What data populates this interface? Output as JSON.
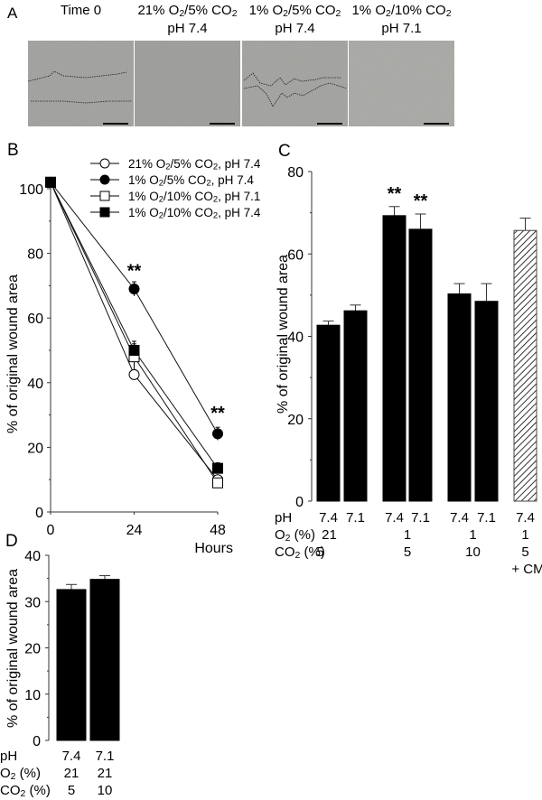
{
  "panel_a": {
    "label": "A",
    "columns": [
      {
        "line1": "Time 0",
        "line2": ""
      },
      {
        "line1": "21% O2/5% CO2",
        "line2": "pH 7.4"
      },
      {
        "line1": "1% O2/5% CO2",
        "line2": "pH 7.4"
      },
      {
        "line1": "1% O2/10% CO2",
        "line2": "pH 7.1"
      }
    ],
    "image_tones": [
      "#a9a9a6",
      "#a5a5a2",
      "#aaaaa7",
      "#b0b0ad"
    ]
  },
  "chart_data": [
    {
      "panel": "B",
      "type": "line",
      "xlabel": "Hours",
      "ylabel": "% of original wound area",
      "x": [
        0,
        24,
        48
      ],
      "xticks": [
        "0",
        "24",
        "48"
      ],
      "ylim": [
        0,
        100
      ],
      "yticks": [
        "0",
        "20",
        "40",
        "60",
        "80",
        "100"
      ],
      "legend_position": "top-right",
      "series": [
        {
          "name": "21% O2/5% CO2, pH 7.4",
          "marker": "open-circle",
          "values": [
            102,
            42.5,
            10
          ],
          "errors": [
            0,
            1.5,
            1
          ]
        },
        {
          "name": "1% O2/5% CO2, pH 7.4",
          "marker": "filled-circle",
          "values": [
            102,
            69,
            24.2
          ],
          "errors": [
            0,
            2.2,
            2
          ]
        },
        {
          "name": "1% O2/10% CO2, pH 7.1",
          "marker": "open-square",
          "values": [
            102,
            48,
            9
          ],
          "errors": [
            0,
            4,
            1
          ]
        },
        {
          "name": "1% O2/10% CO2, pH 7.4",
          "marker": "filled-square",
          "values": [
            102,
            50,
            13.5
          ],
          "errors": [
            0,
            2.8,
            1.7
          ]
        }
      ],
      "annotations": [
        {
          "text": "**",
          "x": 24,
          "y": 75
        },
        {
          "text": "**",
          "x": 48,
          "y": 31
        }
      ]
    },
    {
      "panel": "C",
      "type": "bar",
      "ylabel": "% of original wound area",
      "ylim": [
        0,
        80
      ],
      "yticks": [
        "0",
        "20",
        "40",
        "60",
        "80"
      ],
      "row_labels": [
        "pH",
        "O2 (%)",
        "CO2 (%)"
      ],
      "categories": [
        "7.4",
        "7.1",
        "7.4",
        "7.1",
        "7.4",
        "7.1",
        "7.4"
      ],
      "values": [
        42.7,
        46.2,
        69.3,
        66.0,
        50.3,
        48.5,
        65.7
      ],
      "errors": [
        1.0,
        1.4,
        2.2,
        3.7,
        2.5,
        4.3,
        3.0
      ],
      "hatched": [
        false,
        false,
        false,
        false,
        false,
        false,
        true
      ],
      "significance": [
        "",
        "",
        "**",
        "**",
        "",
        "",
        ""
      ],
      "groups": [
        {
          "o2": "21",
          "co2": "5",
          "extra": ""
        },
        {
          "o2": "1",
          "co2": "5",
          "extra": ""
        },
        {
          "o2": "1",
          "co2": "10",
          "extra": ""
        },
        {
          "o2": "1",
          "co2": "5",
          "extra": "+ CM"
        }
      ]
    },
    {
      "panel": "D",
      "type": "bar",
      "ylabel": "% of original wound area",
      "ylim": [
        0,
        40
      ],
      "yticks": [
        "0",
        "10",
        "20",
        "30",
        "40"
      ],
      "row_labels": [
        "pH",
        "O2 (%)",
        "CO2 (%)"
      ],
      "categories": [
        "7.4",
        "7.1"
      ],
      "values": [
        32.6,
        34.8
      ],
      "errors": [
        1.1,
        0.8
      ],
      "o2": [
        "21",
        "21"
      ],
      "co2": [
        "5",
        "10"
      ]
    }
  ]
}
